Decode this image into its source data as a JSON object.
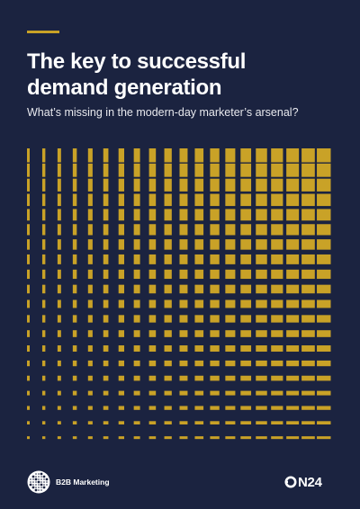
{
  "cover": {
    "title_line1": "The key to successful",
    "title_line2": "demand generation",
    "subtitle": "What’s missing in the modern-day marketer’s arsenal?"
  },
  "colors": {
    "background": "#1b2340",
    "accent_gold": "#c9a227",
    "text": "#ffffff"
  },
  "footer": {
    "publisher_name": "B2B Marketing",
    "publisher_logo_icon": "b2b-marketing-logo-icon",
    "partner_logo_text": "N24",
    "partner_logo_icon": "on24-logo-icon"
  }
}
